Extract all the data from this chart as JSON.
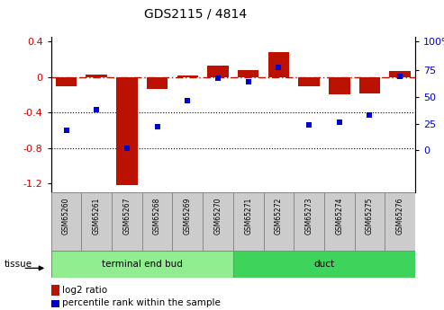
{
  "title": "GDS2115 / 4814",
  "samples": [
    "GSM65260",
    "GSM65261",
    "GSM65267",
    "GSM65268",
    "GSM65269",
    "GSM65270",
    "GSM65271",
    "GSM65272",
    "GSM65273",
    "GSM65274",
    "GSM65275",
    "GSM65276"
  ],
  "log2_ratio": [
    -0.1,
    0.03,
    -1.22,
    -0.13,
    0.02,
    0.13,
    0.08,
    0.28,
    -0.1,
    -0.2,
    -0.18,
    0.07
  ],
  "percentile_rank": [
    18,
    37,
    2,
    22,
    46,
    66,
    63,
    76,
    23,
    26,
    32,
    68
  ],
  "groups": [
    {
      "label": "terminal end bud",
      "start": 0,
      "end": 6,
      "color": "#90EE90"
    },
    {
      "label": "duct",
      "start": 6,
      "end": 12,
      "color": "#3ED45C"
    }
  ],
  "ylim_left": [
    -1.3,
    0.45
  ],
  "ylim_right": [
    -1.3,
    0.45
  ],
  "left_ticks": [
    0.4,
    0.0,
    -0.4,
    -0.8,
    -1.2
  ],
  "left_tick_labels": [
    "0.4",
    "0",
    "-0.4",
    "-0.8",
    "-1.2"
  ],
  "right_ticks_pct": [
    100,
    75,
    50,
    25,
    0
  ],
  "right_ticks_scaled": [
    0.4,
    0.075,
    -0.225,
    -0.525,
    -0.825
  ],
  "ylabel_left_color": "#CC0000",
  "ylabel_right_color": "#0000CC",
  "bar_color": "#BB1100",
  "dot_color": "#0000CC",
  "hline_color": "#BB1100",
  "dotted_line_color": "#000000",
  "background_color": "#ffffff",
  "tissue_label": "tissue",
  "legend_log2": "log2 ratio",
  "legend_pct": "percentile rank within the sample",
  "sample_box_color": "#CCCCCC",
  "sample_box_edge": "#888888"
}
